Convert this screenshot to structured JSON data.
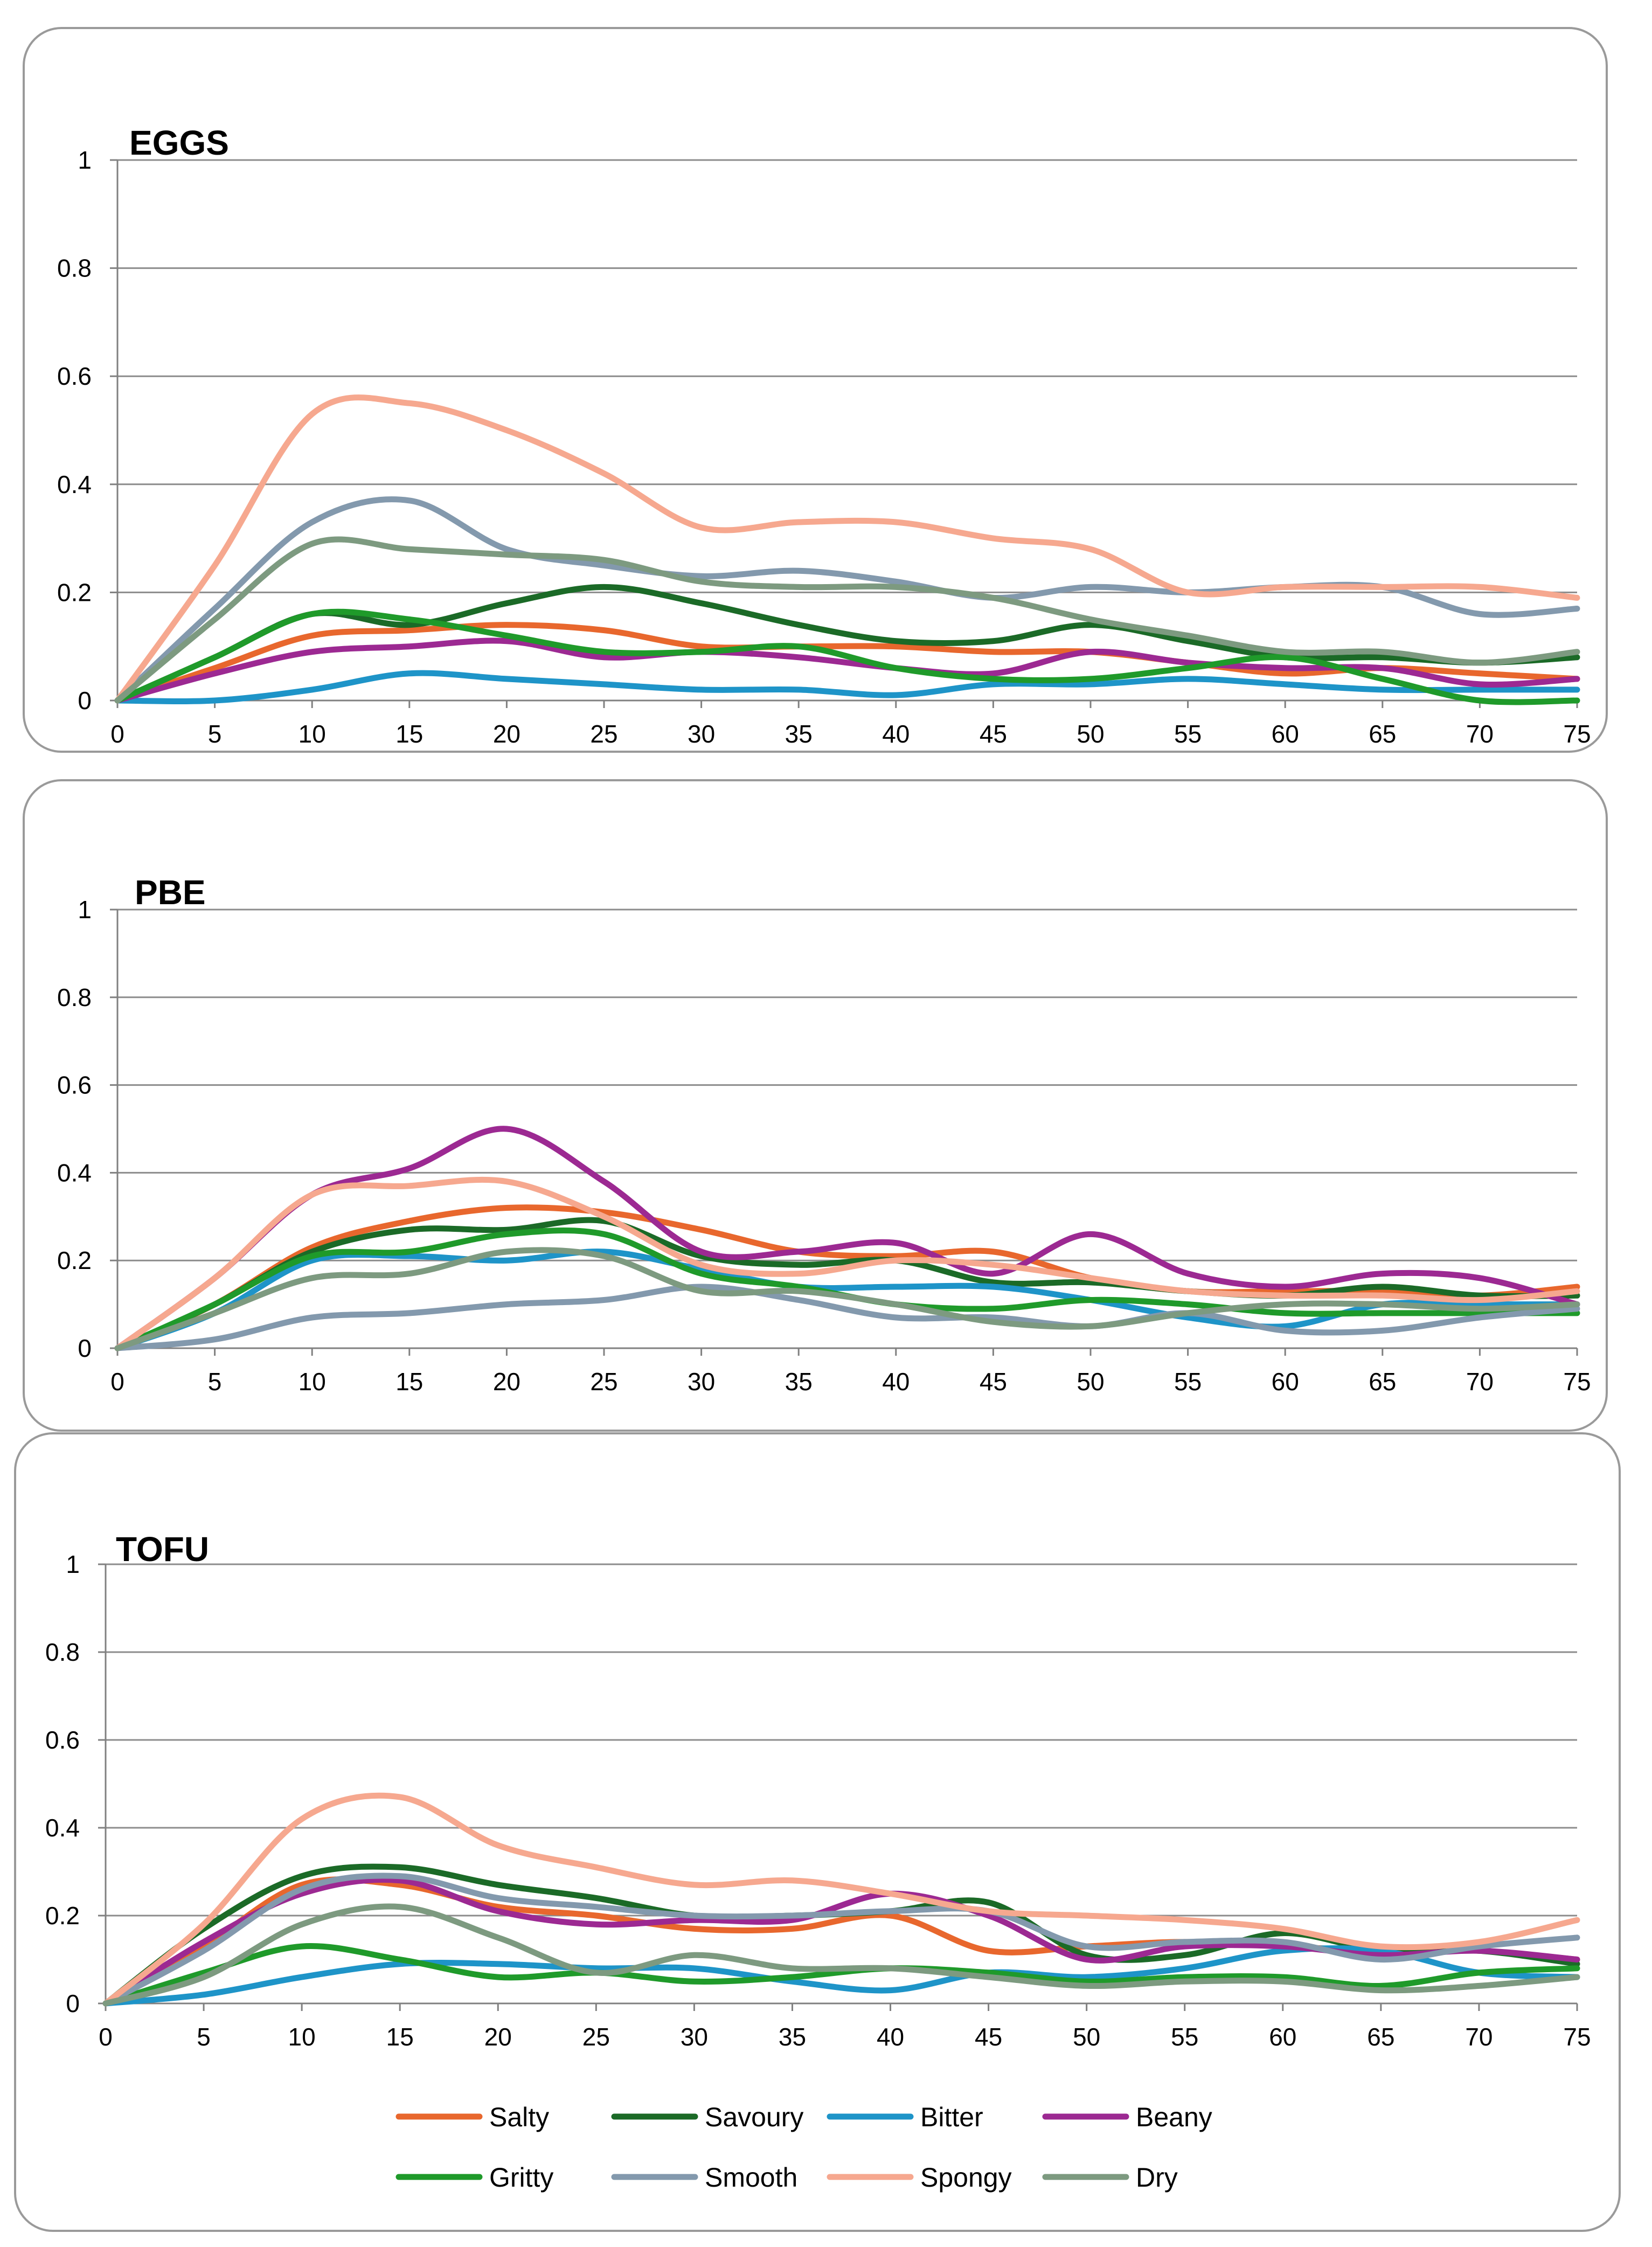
{
  "legend": {
    "items": [
      {
        "name": "Salty",
        "color": "#e8672d"
      },
      {
        "name": "Savoury",
        "color": "#1b6a27"
      },
      {
        "name": "Bitter",
        "color": "#1e94c8"
      },
      {
        "name": "Beany",
        "color": "#9c2992"
      },
      {
        "name": "Gritty",
        "color": "#1f9a2a"
      },
      {
        "name": "Smooth",
        "color": "#8399ad"
      },
      {
        "name": "Spongy",
        "color": "#f6a88f"
      },
      {
        "name": "Dry",
        "color": "#7d9a80"
      }
    ]
  },
  "chart_data": [
    {
      "type": "line",
      "title": "EGGS",
      "x": [
        0,
        5,
        10,
        15,
        20,
        25,
        30,
        35,
        40,
        45,
        50,
        55,
        60,
        65,
        70,
        75
      ],
      "ylim": [
        0,
        1
      ],
      "yticks": [
        "0",
        "0.2",
        "0.4",
        "0.6",
        "0.8",
        "1"
      ],
      "grid": true,
      "series": [
        {
          "name": "Salty",
          "values": [
            0,
            0.06,
            0.12,
            0.13,
            0.14,
            0.13,
            0.1,
            0.1,
            0.1,
            0.09,
            0.09,
            0.07,
            0.05,
            0.06,
            0.05,
            0.04
          ]
        },
        {
          "name": "Savoury",
          "values": [
            0,
            0.08,
            0.16,
            0.14,
            0.18,
            0.21,
            0.18,
            0.14,
            0.11,
            0.11,
            0.14,
            0.11,
            0.08,
            0.08,
            0.07,
            0.08
          ]
        },
        {
          "name": "Bitter",
          "values": [
            0,
            0.0,
            0.02,
            0.05,
            0.04,
            0.03,
            0.02,
            0.02,
            0.01,
            0.03,
            0.03,
            0.04,
            0.03,
            0.02,
            0.02,
            0.02
          ]
        },
        {
          "name": "Beany",
          "values": [
            0,
            0.05,
            0.09,
            0.1,
            0.11,
            0.08,
            0.09,
            0.08,
            0.06,
            0.05,
            0.09,
            0.07,
            0.06,
            0.06,
            0.03,
            0.04
          ]
        },
        {
          "name": "Gritty",
          "values": [
            0,
            0.08,
            0.16,
            0.15,
            0.12,
            0.09,
            0.09,
            0.1,
            0.06,
            0.04,
            0.04,
            0.06,
            0.08,
            0.04,
            0.0,
            0.0
          ]
        },
        {
          "name": "Smooth",
          "values": [
            0,
            0.17,
            0.33,
            0.37,
            0.28,
            0.25,
            0.23,
            0.24,
            0.22,
            0.19,
            0.21,
            0.2,
            0.21,
            0.21,
            0.16,
            0.17
          ]
        },
        {
          "name": "Spongy",
          "values": [
            0,
            0.25,
            0.53,
            0.55,
            0.5,
            0.42,
            0.32,
            0.33,
            0.33,
            0.3,
            0.28,
            0.2,
            0.21,
            0.21,
            0.21,
            0.19
          ]
        },
        {
          "name": "Dry",
          "values": [
            0,
            0.15,
            0.29,
            0.28,
            0.27,
            0.26,
            0.22,
            0.21,
            0.21,
            0.19,
            0.15,
            0.12,
            0.09,
            0.09,
            0.07,
            0.09
          ]
        }
      ]
    },
    {
      "type": "line",
      "title": "PBE",
      "x": [
        0,
        5,
        10,
        15,
        20,
        25,
        30,
        35,
        40,
        45,
        50,
        55,
        60,
        65,
        70,
        75
      ],
      "ylim": [
        0,
        1
      ],
      "yticks": [
        "0",
        "0.2",
        "0.4",
        "0.6",
        "0.8",
        "1"
      ],
      "grid": true,
      "series": [
        {
          "name": "Salty",
          "values": [
            0,
            0.1,
            0.23,
            0.29,
            0.32,
            0.31,
            0.27,
            0.22,
            0.21,
            0.22,
            0.16,
            0.13,
            0.13,
            0.13,
            0.12,
            0.14
          ]
        },
        {
          "name": "Savoury",
          "values": [
            0,
            0.1,
            0.22,
            0.27,
            0.27,
            0.29,
            0.21,
            0.19,
            0.2,
            0.15,
            0.15,
            0.13,
            0.12,
            0.14,
            0.12,
            0.12
          ]
        },
        {
          "name": "Bitter",
          "values": [
            0,
            0.08,
            0.2,
            0.21,
            0.2,
            0.22,
            0.18,
            0.14,
            0.14,
            0.14,
            0.11,
            0.07,
            0.05,
            0.1,
            0.1,
            0.1
          ]
        },
        {
          "name": "Beany",
          "values": [
            0,
            0.16,
            0.35,
            0.41,
            0.5,
            0.38,
            0.22,
            0.22,
            0.24,
            0.17,
            0.26,
            0.17,
            0.14,
            0.17,
            0.16,
            0.1
          ]
        },
        {
          "name": "Gritty",
          "values": [
            0,
            0.1,
            0.21,
            0.22,
            0.26,
            0.26,
            0.17,
            0.14,
            0.1,
            0.09,
            0.11,
            0.1,
            0.08,
            0.08,
            0.08,
            0.08
          ]
        },
        {
          "name": "Smooth",
          "values": [
            0,
            0.02,
            0.07,
            0.08,
            0.1,
            0.11,
            0.14,
            0.11,
            0.07,
            0.07,
            0.05,
            0.08,
            0.04,
            0.04,
            0.07,
            0.09
          ]
        },
        {
          "name": "Spongy",
          "values": [
            0,
            0.16,
            0.35,
            0.37,
            0.38,
            0.3,
            0.19,
            0.17,
            0.2,
            0.19,
            0.16,
            0.13,
            0.12,
            0.12,
            0.11,
            0.13
          ]
        },
        {
          "name": "Dry",
          "values": [
            0,
            0.08,
            0.16,
            0.17,
            0.22,
            0.21,
            0.13,
            0.13,
            0.1,
            0.06,
            0.05,
            0.08,
            0.1,
            0.1,
            0.09,
            0.1
          ]
        }
      ]
    },
    {
      "type": "line",
      "title": "TOFU",
      "x": [
        0,
        5,
        10,
        15,
        20,
        25,
        30,
        35,
        40,
        45,
        50,
        55,
        60,
        65,
        70,
        75
      ],
      "ylim": [
        0,
        1
      ],
      "yticks": [
        "0",
        "0.2",
        "0.4",
        "0.6",
        "0.8",
        "1"
      ],
      "grid": true,
      "series": [
        {
          "name": "Salty",
          "values": [
            0,
            0.13,
            0.27,
            0.27,
            0.22,
            0.2,
            0.17,
            0.17,
            0.2,
            0.12,
            0.13,
            0.14,
            0.13,
            0.12,
            0.12,
            0.1
          ]
        },
        {
          "name": "Savoury",
          "values": [
            0,
            0.17,
            0.29,
            0.31,
            0.27,
            0.24,
            0.2,
            0.2,
            0.21,
            0.23,
            0.11,
            0.11,
            0.16,
            0.12,
            0.12,
            0.09
          ]
        },
        {
          "name": "Bitter",
          "values": [
            0,
            0.02,
            0.06,
            0.09,
            0.09,
            0.08,
            0.08,
            0.05,
            0.03,
            0.07,
            0.06,
            0.08,
            0.12,
            0.12,
            0.07,
            0.06
          ]
        },
        {
          "name": "Beany",
          "values": [
            0,
            0.14,
            0.25,
            0.28,
            0.21,
            0.18,
            0.19,
            0.19,
            0.25,
            0.2,
            0.1,
            0.13,
            0.13,
            0.11,
            0.12,
            0.1
          ]
        },
        {
          "name": "Gritty",
          "values": [
            0,
            0.07,
            0.13,
            0.1,
            0.06,
            0.07,
            0.05,
            0.06,
            0.08,
            0.07,
            0.05,
            0.06,
            0.06,
            0.04,
            0.07,
            0.08
          ]
        },
        {
          "name": "Smooth",
          "values": [
            0,
            0.12,
            0.26,
            0.29,
            0.24,
            0.22,
            0.2,
            0.2,
            0.21,
            0.21,
            0.13,
            0.14,
            0.14,
            0.1,
            0.13,
            0.15
          ]
        },
        {
          "name": "Spongy",
          "values": [
            0,
            0.18,
            0.42,
            0.47,
            0.36,
            0.31,
            0.27,
            0.28,
            0.25,
            0.21,
            0.2,
            0.19,
            0.17,
            0.13,
            0.14,
            0.19
          ]
        },
        {
          "name": "Dry",
          "values": [
            0,
            0.06,
            0.18,
            0.22,
            0.15,
            0.07,
            0.11,
            0.08,
            0.08,
            0.06,
            0.04,
            0.05,
            0.05,
            0.03,
            0.04,
            0.06
          ]
        }
      ]
    }
  ]
}
